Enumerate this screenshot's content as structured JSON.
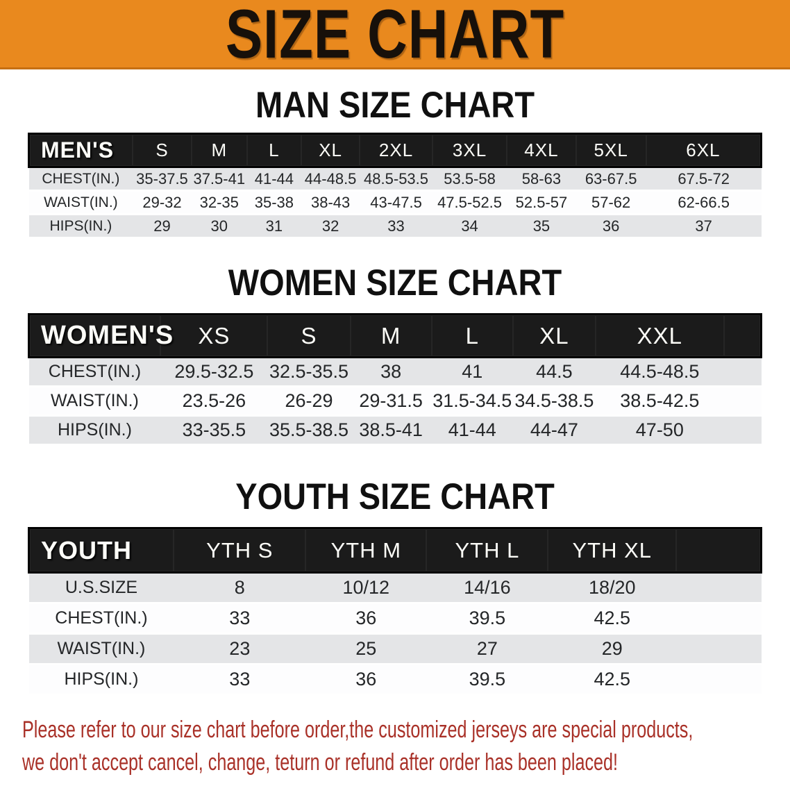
{
  "banner": {
    "title": "SIZE CHART"
  },
  "colors": {
    "banner_bg": "#E9891E",
    "banner_border": "#C66F12",
    "table_header_bg": "#1B1B1B",
    "row_gray": "#E4E5E7",
    "row_white": "#FDFDFE",
    "note_red": "#A93128"
  },
  "sections": [
    {
      "heading": "MAN SIZE CHART",
      "header_label": "MEN'S",
      "columns": [
        "S",
        "M",
        "L",
        "XL",
        "2XL",
        "3XL",
        "4XL",
        "5XL",
        "6XL"
      ],
      "rows": [
        {
          "label": "CHEST(IN.)",
          "values": [
            "35-37.5",
            "37.5-41",
            "41-44",
            "44-48.5",
            "48.5-53.5",
            "53.5-58",
            "58-63",
            "63-67.5",
            "67.5-72"
          ]
        },
        {
          "label": "WAIST(IN.)",
          "values": [
            "29-32",
            "32-35",
            "35-38",
            "38-43",
            "43-47.5",
            "47.5-52.5",
            "52.5-57",
            "57-62",
            "62-66.5"
          ]
        },
        {
          "label": "HIPS(IN.)",
          "values": [
            "29",
            "30",
            "31",
            "32",
            "33",
            "34",
            "35",
            "36",
            "37"
          ]
        }
      ]
    },
    {
      "heading": "WOMEN SIZE CHART",
      "header_label": "WOMEN'S",
      "columns": [
        "XS",
        "S",
        "M",
        "L",
        "XL",
        "XXL"
      ],
      "rows": [
        {
          "label": "CHEST(IN.)",
          "values": [
            "29.5-32.5",
            "32.5-35.5",
            "38",
            "41",
            "44.5",
            "44.5-48.5"
          ]
        },
        {
          "label": "WAIST(IN.)",
          "values": [
            "23.5-26",
            "26-29",
            "29-31.5",
            "31.5-34.5",
            "34.5-38.5",
            "38.5-42.5"
          ]
        },
        {
          "label": "HIPS(IN.)",
          "values": [
            "33-35.5",
            "35.5-38.5",
            "38.5-41",
            "41-44",
            "44-47",
            "47-50"
          ]
        }
      ]
    },
    {
      "heading": "YOUTH SIZE CHART",
      "header_label": "YOUTH",
      "columns": [
        "YTH S",
        "YTH M",
        "YTH L",
        "YTH XL"
      ],
      "rows": [
        {
          "label": "U.S.SIZE",
          "values": [
            "8",
            "10/12",
            "14/16",
            "18/20"
          ]
        },
        {
          "label": "CHEST(IN.)",
          "values": [
            "33",
            "36",
            "39.5",
            "42.5"
          ]
        },
        {
          "label": "WAIST(IN.)",
          "values": [
            "23",
            "25",
            "27",
            "29"
          ]
        },
        {
          "label": "HIPS(IN.)",
          "values": [
            "33",
            "36",
            "39.5",
            "42.5"
          ]
        }
      ]
    }
  ],
  "footer": {
    "line1": "Please refer to our size chart before order,the customized jerseys are special products,",
    "line2": "we don't accept cancel, change, teturn or refund after order has been placed!"
  }
}
